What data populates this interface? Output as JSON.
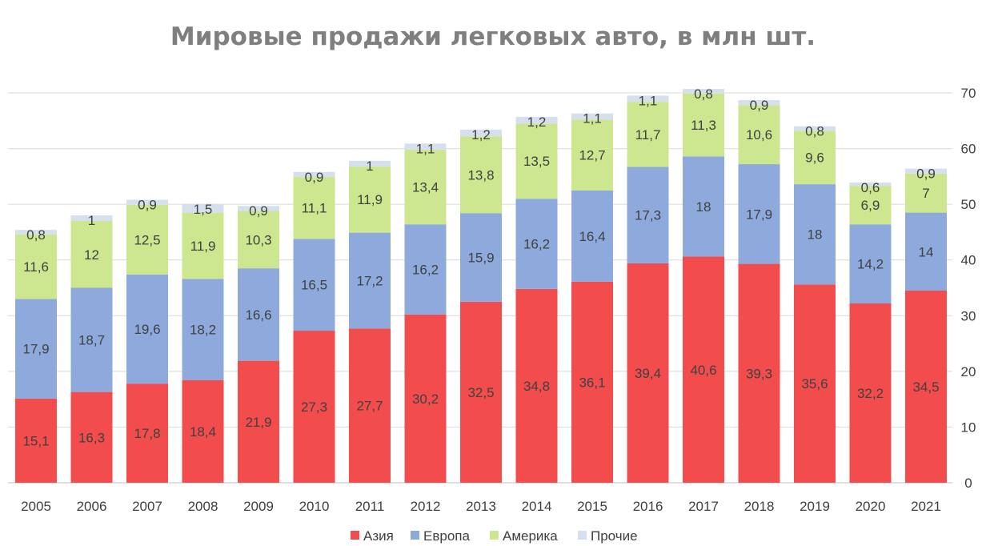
{
  "chart_data": {
    "type": "bar",
    "stacked": true,
    "title": "Мировые продажи легковых авто, в млн шт.",
    "xlabel": "",
    "ylabel": "",
    "ylim": [
      0,
      70
    ],
    "yticks": [
      0,
      10,
      20,
      30,
      40,
      50,
      60,
      70
    ],
    "y_axis_side": "right",
    "grid": true,
    "legend_position": "bottom",
    "categories": [
      "2005",
      "2006",
      "2007",
      "2008",
      "2009",
      "2010",
      "2011",
      "2012",
      "2013",
      "2014",
      "2015",
      "2016",
      "2017",
      "2018",
      "2019",
      "2020",
      "2021"
    ],
    "series": [
      {
        "name": "Азия",
        "color": "#f24c4c",
        "values": [
          15.1,
          16.3,
          17.8,
          18.4,
          21.9,
          27.3,
          27.7,
          30.2,
          32.5,
          34.8,
          36.1,
          39.4,
          40.6,
          39.3,
          35.6,
          32.2,
          34.5
        ]
      },
      {
        "name": "Европа",
        "color": "#8eaadc",
        "values": [
          17.9,
          18.7,
          19.6,
          18.2,
          16.6,
          16.5,
          17.2,
          16.2,
          15.9,
          16.2,
          16.4,
          17.3,
          18,
          17.9,
          18,
          14.2,
          14
        ]
      },
      {
        "name": "Америка",
        "color": "#cde790",
        "values": [
          11.6,
          12,
          12.5,
          11.9,
          10.3,
          11.1,
          11.9,
          13.4,
          13.8,
          13.5,
          12.7,
          11.7,
          11.3,
          10.6,
          9.6,
          6.9,
          7
        ]
      },
      {
        "name": "Прочие",
        "color": "#d6dfee",
        "values": [
          0.8,
          1,
          0.9,
          1.5,
          0.9,
          0.9,
          1,
          1.1,
          1.2,
          1.2,
          1.1,
          1.1,
          0.8,
          0.9,
          0.8,
          0.6,
          0.9
        ]
      }
    ]
  }
}
